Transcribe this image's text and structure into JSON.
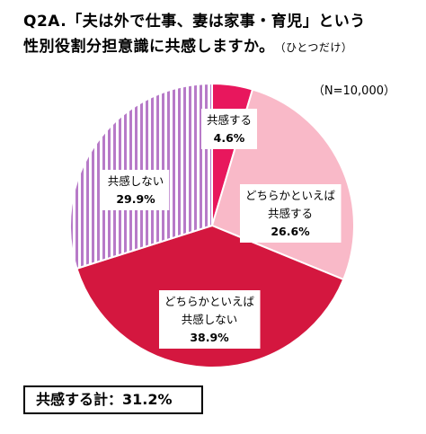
{
  "question": {
    "title_line1": "Q2A.「夫は外で仕事、妻は家事・育児」という",
    "title_line2": "性別役割分担意識に共感しますか。",
    "note": "（ひとつだけ）"
  },
  "sample_size": "（N=10,000）",
  "total_label": "共感する計：31.2%",
  "chart_data": {
    "type": "pie",
    "slices": [
      {
        "label_lines": [
          "共感する"
        ],
        "value": 4.6,
        "value_label": "4.6%",
        "color": "#e8175d",
        "pattern": "solid"
      },
      {
        "label_lines": [
          "どちらかといえば",
          "共感する"
        ],
        "value": 26.6,
        "value_label": "26.6%",
        "color": "#f9b9c8",
        "pattern": "solid"
      },
      {
        "label_lines": [
          "どちらかといえば",
          "共感しない"
        ],
        "value": 38.9,
        "value_label": "38.9%",
        "color": "#d4173f",
        "pattern": "solid"
      },
      {
        "label_lines": [
          "共感しない"
        ],
        "value": 29.9,
        "value_label": "29.9%",
        "color": "#b77ac8",
        "pattern": "vertical-stripes"
      }
    ],
    "start": "12 o'clock",
    "direction": "clockwise"
  }
}
